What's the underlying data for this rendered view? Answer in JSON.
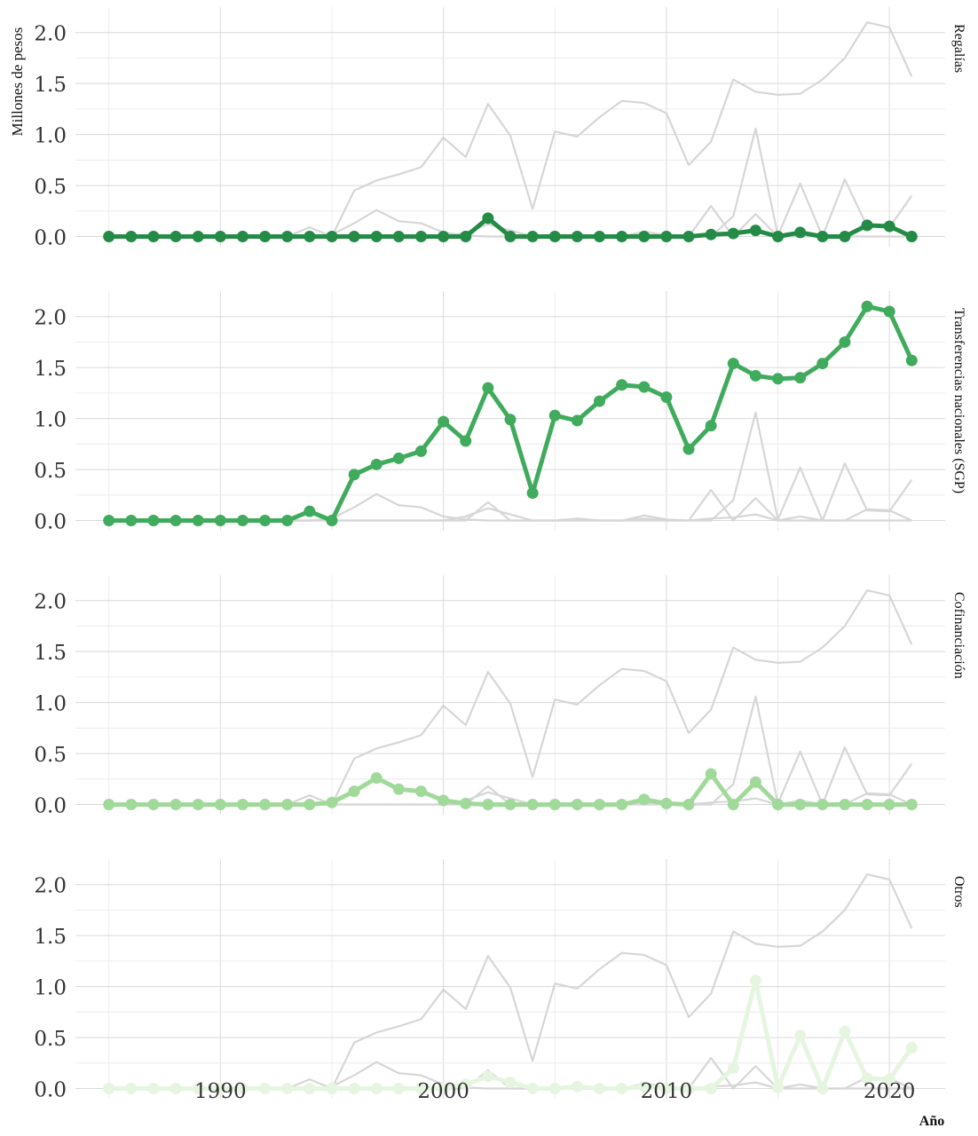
{
  "chart_data": {
    "type": "line",
    "xlabel": "Año",
    "ylabel": "Millones de pesos",
    "xlim": [
      1983.5,
      2022.5
    ],
    "ylim": [
      -0.1,
      2.25
    ],
    "x_ticks": [
      1990,
      2000,
      2010,
      2020
    ],
    "y_ticks": [
      0.0,
      0.5,
      1.0,
      1.5,
      2.0
    ],
    "y_tick_labels": [
      "0.0",
      "0.5",
      "1.0",
      "1.5",
      "2.0"
    ],
    "grid": true,
    "x": [
      1985,
      1986,
      1987,
      1988,
      1989,
      1990,
      1991,
      1992,
      1993,
      1994,
      1995,
      1996,
      1997,
      1998,
      1999,
      2000,
      2001,
      2002,
      2003,
      2004,
      2005,
      2006,
      2007,
      2008,
      2009,
      2010,
      2011,
      2012,
      2013,
      2014,
      2015,
      2016,
      2017,
      2018,
      2019,
      2020,
      2021
    ],
    "series": [
      {
        "name": "Regalías",
        "color": "#238b45",
        "values": [
          0,
          0,
          0,
          0,
          0,
          0,
          0,
          0,
          0,
          0,
          0,
          0,
          0,
          0,
          0,
          0,
          0,
          0.18,
          0,
          0,
          0,
          0,
          0,
          0,
          0,
          0,
          0,
          0.02,
          0.03,
          0.06,
          0,
          0.04,
          0,
          0,
          0.11,
          0.1,
          0
        ]
      },
      {
        "name": "Transferencias nacionales (SGP)",
        "color": "#41ab5d",
        "values": [
          0,
          0,
          0,
          0,
          0,
          0,
          0,
          0,
          0,
          0.09,
          0,
          0.45,
          0.55,
          0.61,
          0.68,
          0.97,
          0.78,
          1.3,
          0.99,
          0.27,
          1.03,
          0.98,
          1.17,
          1.33,
          1.31,
          1.21,
          0.7,
          0.93,
          1.54,
          1.42,
          1.39,
          1.4,
          1.54,
          1.75,
          2.1,
          2.05,
          1.57
        ]
      },
      {
        "name": "Cofinanciación",
        "color": "#a1d99b",
        "values": [
          0,
          0,
          0,
          0,
          0,
          0,
          0,
          0,
          0,
          0,
          0.02,
          0.13,
          0.26,
          0.15,
          0.13,
          0.04,
          0.01,
          0,
          0,
          0,
          0,
          0,
          0,
          0,
          0.05,
          0.01,
          0,
          0.3,
          0,
          0.22,
          0,
          0,
          0,
          0,
          0,
          0,
          0
        ]
      },
      {
        "name": "Otros",
        "color": "#e5f5e0",
        "values": [
          0,
          0,
          0,
          0,
          0,
          0,
          0,
          0,
          0,
          0,
          0,
          0,
          0,
          0,
          0,
          0,
          0.04,
          0.12,
          0.06,
          0,
          0,
          0.02,
          0,
          0,
          0.02,
          0,
          0,
          0,
          0.2,
          1.06,
          0.01,
          0.52,
          0,
          0.56,
          0.1,
          0.09,
          0.4
        ]
      }
    ]
  }
}
